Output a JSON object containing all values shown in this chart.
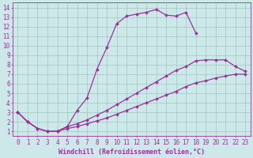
{
  "background_color": "#cce8e8",
  "grid_color": "#99bbbb",
  "line_color": "#993399",
  "marker": "D",
  "markersize": 2.0,
  "linewidth": 0.9,
  "xlabel": "Windchill (Refroidissement éolien,°C)",
  "xlabel_fontsize": 6.0,
  "tick_fontsize": 5.5,
  "xlim": [
    -0.5,
    23.5
  ],
  "ylim": [
    0.5,
    14.5
  ],
  "yticks": [
    1,
    2,
    3,
    4,
    5,
    6,
    7,
    8,
    9,
    10,
    11,
    12,
    13,
    14
  ],
  "xticks": [
    0,
    1,
    2,
    3,
    4,
    5,
    6,
    7,
    8,
    9,
    10,
    11,
    12,
    13,
    14,
    15,
    16,
    17,
    18,
    19,
    20,
    21,
    22,
    23
  ],
  "curve1_x": [
    0,
    1,
    2,
    3,
    4,
    5,
    6,
    7,
    8,
    9,
    10,
    11,
    12,
    13,
    14,
    15,
    16,
    17,
    18
  ],
  "curve1_y": [
    3.0,
    2.0,
    1.3,
    1.0,
    1.0,
    1.5,
    3.2,
    4.5,
    7.5,
    9.8,
    12.3,
    13.1,
    13.3,
    13.5,
    13.8,
    13.2,
    13.1,
    13.5,
    11.3
  ],
  "curve2_x": [
    0,
    1,
    2,
    3,
    4,
    5,
    6,
    7,
    8,
    9,
    10,
    11,
    12,
    13,
    14,
    15,
    16,
    17,
    18,
    19,
    20,
    21,
    22,
    23
  ],
  "curve2_y": [
    3.0,
    2.0,
    1.3,
    1.0,
    1.0,
    1.5,
    1.8,
    2.2,
    2.7,
    3.2,
    3.8,
    4.4,
    5.0,
    5.6,
    6.2,
    6.8,
    7.4,
    7.8,
    8.4,
    8.5,
    8.5,
    8.5,
    7.8,
    7.3
  ],
  "curve3_x": [
    0,
    1,
    2,
    3,
    4,
    5,
    6,
    7,
    8,
    9,
    10,
    11,
    12,
    13,
    14,
    15,
    16,
    17,
    18,
    19,
    20,
    21,
    22,
    23
  ],
  "curve3_y": [
    3.0,
    2.0,
    1.3,
    1.0,
    1.0,
    1.3,
    1.5,
    1.8,
    2.1,
    2.4,
    2.8,
    3.2,
    3.6,
    4.0,
    4.4,
    4.8,
    5.2,
    5.7,
    6.1,
    6.3,
    6.6,
    6.8,
    7.0,
    7.0
  ]
}
